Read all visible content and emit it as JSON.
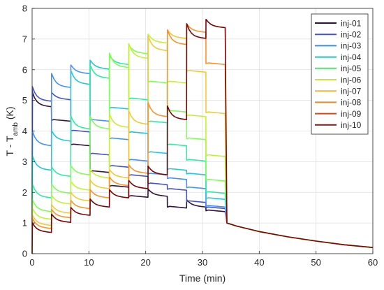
{
  "chart_data": {
    "type": "line",
    "xlabel": "Time (min)",
    "ylabel_main": "T - T",
    "ylabel_sub": "amb",
    "ylabel_unit": " (K)",
    "xlim": [
      0,
      60
    ],
    "ylim": [
      0,
      8
    ],
    "xticks": [
      "0",
      "10",
      "20",
      "30",
      "40",
      "50",
      "60"
    ],
    "yticks": [
      "0",
      "1",
      "2",
      "3",
      "4",
      "5",
      "6",
      "7",
      "8"
    ],
    "grid": true,
    "legend_position": "top-right",
    "step_times": [
      0,
      3.4,
      6.8,
      10.2,
      13.6,
      17.0,
      20.4,
      23.8,
      27.2,
      30.6,
      34.0
    ],
    "decay": {
      "t": [
        34.3,
        36,
        40,
        45,
        50,
        55,
        60
      ],
      "y": [
        1.0,
        0.9,
        0.72,
        0.55,
        0.41,
        0.29,
        0.2
      ]
    },
    "series": [
      {
        "name": "inj-01",
        "color": "#30123b",
        "levels": [
          4.82,
          4.35,
          3.55,
          2.68,
          2.2,
          1.87,
          1.9,
          1.52,
          1.55,
          1.4
        ]
      },
      {
        "name": "inj-02",
        "color": "#4454c4",
        "levels": [
          5.0,
          5.05,
          4.0,
          3.25,
          2.85,
          2.55,
          2.28,
          2.1,
          1.7,
          1.5
        ]
      },
      {
        "name": "inj-03",
        "color": "#4490fe",
        "levels": [
          3.55,
          5.45,
          5.9,
          4.35,
          3.75,
          3.05,
          2.6,
          2.45,
          2.15,
          1.55
        ]
      },
      {
        "name": "inj-04",
        "color": "#1fc8de",
        "levels": [
          2.75,
          3.7,
          5.55,
          6.05,
          4.75,
          3.95,
          3.3,
          2.75,
          2.6,
          1.8
        ]
      },
      {
        "name": "inj-05",
        "color": "#29efa2",
        "levels": [
          1.85,
          2.55,
          4.1,
          5.75,
          6.2,
          5.05,
          4.3,
          3.55,
          3.05,
          2.0
        ]
      },
      {
        "name": "inj-06",
        "color": "#7dff56",
        "levels": [
          1.4,
          2.0,
          2.6,
          4.1,
          6.1,
          6.55,
          5.6,
          4.65,
          3.75,
          2.4
        ]
      },
      {
        "name": "inj-07",
        "color": "#c1f334",
        "levels": [
          1.15,
          1.65,
          2.1,
          2.5,
          4.15,
          6.4,
          6.9,
          5.6,
          4.5,
          3.2
        ]
      },
      {
        "name": "inj-08",
        "color": "#f1ca3a",
        "levels": [
          0.95,
          1.35,
          1.75,
          2.15,
          2.5,
          4.25,
          6.65,
          7.05,
          5.95,
          4.6
        ]
      },
      {
        "name": "inj-09",
        "color": "#fe922a",
        "levels": [
          0.85,
          1.2,
          1.5,
          1.85,
          2.25,
          2.65,
          4.5,
          6.85,
          7.25,
          6.2
        ]
      },
      {
        "name": "inj-10",
        "color": "#7a0403",
        "levels": [
          0.72,
          1.05,
          1.28,
          1.55,
          1.85,
          2.15,
          2.6,
          4.4,
          7.05,
          7.4
        ]
      }
    ],
    "legend_line_colors": [
      "#30123b",
      "#4454c4",
      "#3a8fe0",
      "#1fc8b4",
      "#4ce66a",
      "#d6e040",
      "#f5b83a",
      "#f08a28",
      "#d6451c",
      "#7a1a12"
    ]
  }
}
